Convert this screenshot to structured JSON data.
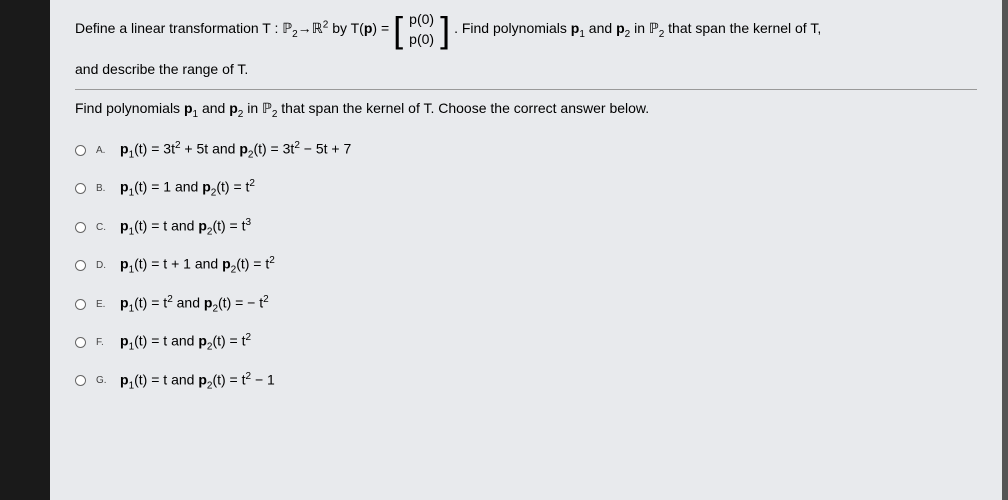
{
  "problem": {
    "line1_pre": "Define a linear transformation T : ",
    "line1_space": "ℙ",
    "line1_sub1": "2",
    "line1_arrow": "→",
    "line1_r": "ℝ",
    "line1_sup1": "2",
    "line1_by": " by T(",
    "line1_p": "p",
    "line1_eq": ") = ",
    "matrix_top": "p(0)",
    "matrix_bot": "p(0)",
    "line1_post_pre": ". Find polynomials ",
    "line1_p1": "p",
    "line1_p1sub": "1",
    "line1_and": " and ",
    "line1_p2": "p",
    "line1_p2sub": "2",
    "line1_in": " in ",
    "line1_pspace": "ℙ",
    "line1_pspacesub": "2",
    "line1_end": " that span the kernel of T,",
    "line2": "and describe the range of T."
  },
  "question": {
    "pre": "Find polynomials ",
    "p1": "p",
    "p1sub": "1",
    "and": " and ",
    "p2": "p",
    "p2sub": "2",
    "in": " in ",
    "pspace": "ℙ",
    "pspacesub": "2",
    "end": " that span the kernel of T. Choose the correct answer below."
  },
  "options": {
    "a": {
      "label": "A.",
      "text_parts": [
        "p",
        "1",
        "(t) = 3t",
        "2",
        " + 5t and ",
        "p",
        "2",
        "(t) = 3t",
        "2",
        " − 5t + 7"
      ]
    },
    "b": {
      "label": "B.",
      "text_parts": [
        "p",
        "1",
        "(t) = 1 and ",
        "p",
        "2",
        "(t) = t",
        "2"
      ]
    },
    "c": {
      "label": "C.",
      "text_parts": [
        "p",
        "1",
        "(t) = t and ",
        "p",
        "2",
        "(t) = t",
        "3"
      ]
    },
    "d": {
      "label": "D.",
      "text_parts": [
        "p",
        "1",
        "(t) = t + 1 and ",
        "p",
        "2",
        "(t) = t",
        "2"
      ]
    },
    "e": {
      "label": "E.",
      "text_parts": [
        "p",
        "1",
        "(t) = t",
        "2",
        " and ",
        "p",
        "2",
        "(t) = − t",
        "2"
      ]
    },
    "f": {
      "label": "F.",
      "text_parts": [
        "p",
        "1",
        "(t) = t and ",
        "p",
        "2",
        "(t) = t",
        "2"
      ]
    },
    "g": {
      "label": "G.",
      "text_parts": [
        "p",
        "1",
        "(t) = t and ",
        "p",
        "2",
        "(t) = t",
        "2",
        " − 1"
      ]
    }
  }
}
